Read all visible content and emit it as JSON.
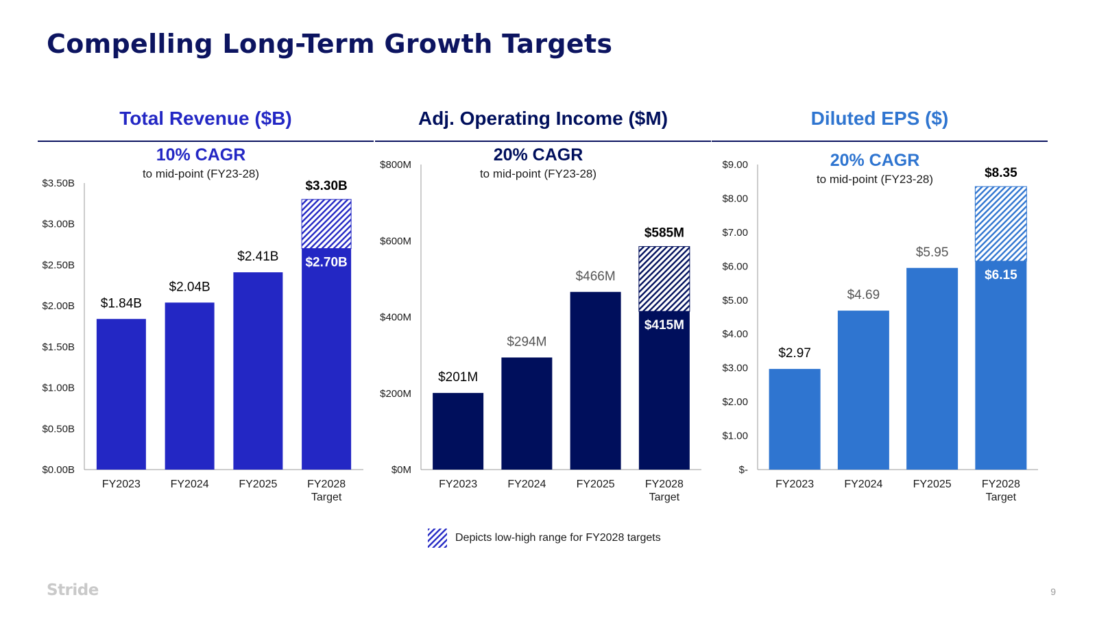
{
  "page": {
    "title": "Compelling Long-Term Growth Targets",
    "brand": "Stride",
    "page_number": "9",
    "legend_text": "Depicts low-high range for FY2028 targets"
  },
  "colors": {
    "title": "#0c1460",
    "revenue": "#2327c4",
    "income": "#000f5c",
    "eps": "#2f75d0",
    "axis": "#999999"
  },
  "chart_data": [
    {
      "type": "bar",
      "title": "Total Revenue ($B)",
      "title_color": "#2327c4",
      "bar_color": "#2327c4",
      "cagr": "10% CAGR",
      "cagr_sub": "to mid-point (FY23-28)",
      "categories": [
        "FY2023",
        "FY2024",
        "FY2025",
        "FY2028 Target"
      ],
      "values": [
        1.84,
        2.04,
        2.41,
        2.7
      ],
      "value_labels": [
        "$1.84B",
        "$2.04B",
        "$2.41B",
        "$2.70B"
      ],
      "range_high": 3.3,
      "range_high_label": "$3.30B",
      "ylim": [
        0,
        3.5
      ],
      "yticks": [
        0,
        0.5,
        1.0,
        1.5,
        2.0,
        2.5,
        3.0,
        3.5
      ],
      "ytick_labels": [
        "$0.00B",
        "$0.50B",
        "$1.00B",
        "$1.50B",
        "$2.00B",
        "$2.50B",
        "$3.00B",
        "$3.50B"
      ]
    },
    {
      "type": "bar",
      "title": "Adj. Operating Income ($M)",
      "title_color": "#000f5c",
      "bar_color": "#000f5c",
      "cagr": "20% CAGR",
      "cagr_sub": "to mid-point (FY23-28)",
      "categories": [
        "FY2023",
        "FY2024",
        "FY2025",
        "FY2028 Target"
      ],
      "values": [
        201,
        294,
        466,
        415
      ],
      "value_labels": [
        "$201M",
        "$294M",
        "$466M",
        "$415M"
      ],
      "range_high": 585,
      "range_high_label": "$585M",
      "ylim": [
        0,
        800
      ],
      "yticks": [
        0,
        200,
        400,
        600,
        800
      ],
      "ytick_labels": [
        "$0M",
        "$200M",
        "$400M",
        "$600M",
        "$800M"
      ]
    },
    {
      "type": "bar",
      "title": "Diluted EPS ($)",
      "title_color": "#2f75d0",
      "bar_color": "#2f75d0",
      "cagr": "20% CAGR",
      "cagr_sub": "to mid-point (FY23-28)",
      "categories": [
        "FY2023",
        "FY2024",
        "FY2025",
        "FY2028 Target"
      ],
      "values": [
        2.97,
        4.69,
        5.95,
        6.15
      ],
      "value_labels": [
        "$2.97",
        "$4.69",
        "$5.95",
        "$6.15"
      ],
      "range_high": 8.35,
      "range_high_label": "$8.35",
      "ylim": [
        0,
        9
      ],
      "yticks": [
        0,
        1,
        2,
        3,
        4,
        5,
        6,
        7,
        8,
        9
      ],
      "ytick_labels": [
        "$-",
        "$1.00",
        "$2.00",
        "$3.00",
        "$4.00",
        "$5.00",
        "$6.00",
        "$7.00",
        "$8.00",
        "$9.00"
      ]
    }
  ]
}
